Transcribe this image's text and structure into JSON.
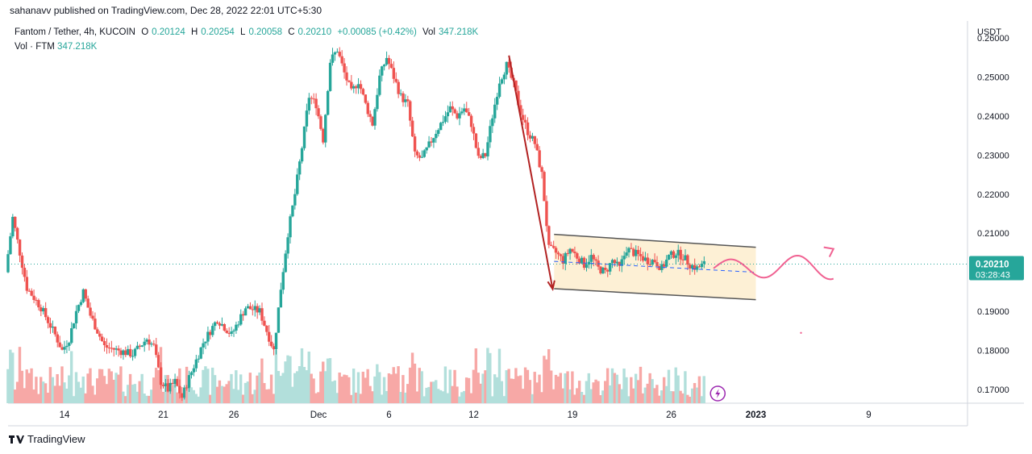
{
  "header": {
    "published": "sahanavv published on TradingView.com, Dec 28, 2022 22:01 UTC+5:30"
  },
  "legend": {
    "symbol": "Fantom / Tether, 4h, KUCOIN",
    "open_label": "O",
    "open": "0.20124",
    "high_label": "H",
    "high": "0.20254",
    "low_label": "L",
    "low": "0.20058",
    "close_label": "C",
    "close": "0.20210",
    "change": "+0.00085 (+0.42%)",
    "vol_label": "Vol",
    "vol": "347.218K",
    "vol_line_label": "Vol · FTM",
    "vol_line_value": "347.218K"
  },
  "axis": {
    "currency": "USDT",
    "countdown": "03:28:43"
  },
  "footer": {
    "brand": "TradingView"
  },
  "colors": {
    "up": "#26a69a",
    "down": "#ef5350",
    "vol_up": "#b2dfdb",
    "vol_down": "#f7a8a6",
    "channel_fill": "#fdf0d5",
    "channel_line": "#555555",
    "arrow": "#b22222",
    "projection": "#f06292",
    "mid_line": "#2962ff",
    "price_tag": "#26a69a"
  },
  "chart_data": {
    "type": "candlestick",
    "interval": "4h",
    "ylim": [
      0.1665,
      0.2635
    ],
    "y_ticks": [
      "0.26000",
      "0.25000",
      "0.24000",
      "0.23000",
      "0.22000",
      "0.21000",
      "0.19000",
      "0.18000",
      "0.17000"
    ],
    "y_tick_values": [
      0.26,
      0.25,
      0.24,
      0.23,
      0.22,
      0.21,
      0.19,
      0.18,
      0.17
    ],
    "x_labels": [
      "14",
      "21",
      "26",
      "Dec",
      "6",
      "12",
      "19",
      "26",
      "2023",
      "9"
    ],
    "x_label_days": [
      -17,
      -10,
      -5,
      1,
      6,
      12,
      19,
      26,
      32,
      40
    ],
    "x_range_days": [
      -21,
      47
    ],
    "last_price": 0.2021,
    "last_price_label": "0.20210",
    "anchors": [
      {
        "d": -21,
        "p": 0.2
      },
      {
        "d": -20.5,
        "p": 0.214
      },
      {
        "d": -20,
        "p": 0.205
      },
      {
        "d": -19.5,
        "p": 0.196
      },
      {
        "d": -18.5,
        "p": 0.191
      },
      {
        "d": -17.5,
        "p": 0.184
      },
      {
        "d": -17,
        "p": 0.18
      },
      {
        "d": -16.5,
        "p": 0.183
      },
      {
        "d": -16,
        "p": 0.19
      },
      {
        "d": -15.5,
        "p": 0.195
      },
      {
        "d": -15,
        "p": 0.189
      },
      {
        "d": -14,
        "p": 0.181
      },
      {
        "d": -12,
        "p": 0.179
      },
      {
        "d": -11,
        "p": 0.183
      },
      {
        "d": -10.5,
        "p": 0.181
      },
      {
        "d": -10,
        "p": 0.172
      },
      {
        "d": -9.5,
        "p": 0.17
      },
      {
        "d": -9,
        "p": 0.172
      },
      {
        "d": -8.5,
        "p": 0.168
      },
      {
        "d": -8,
        "p": 0.173
      },
      {
        "d": -7,
        "p": 0.182
      },
      {
        "d": -6,
        "p": 0.188
      },
      {
        "d": -5,
        "p": 0.184
      },
      {
        "d": -4,
        "p": 0.191
      },
      {
        "d": -3,
        "p": 0.19
      },
      {
        "d": -2,
        "p": 0.18
      },
      {
        "d": -1.5,
        "p": 0.196
      },
      {
        "d": -1,
        "p": 0.21
      },
      {
        "d": -0.5,
        "p": 0.22
      },
      {
        "d": 0,
        "p": 0.232
      },
      {
        "d": 0.5,
        "p": 0.245
      },
      {
        "d": 1,
        "p": 0.243
      },
      {
        "d": 1.5,
        "p": 0.234
      },
      {
        "d": 2,
        "p": 0.254
      },
      {
        "d": 2.5,
        "p": 0.257
      },
      {
        "d": 3,
        "p": 0.251
      },
      {
        "d": 3.5,
        "p": 0.246
      },
      {
        "d": 4,
        "p": 0.249
      },
      {
        "d": 4.5,
        "p": 0.243
      },
      {
        "d": 5,
        "p": 0.238
      },
      {
        "d": 5.5,
        "p": 0.25
      },
      {
        "d": 6,
        "p": 0.255
      },
      {
        "d": 6.5,
        "p": 0.25
      },
      {
        "d": 7,
        "p": 0.245
      },
      {
        "d": 7.5,
        "p": 0.243
      },
      {
        "d": 8,
        "p": 0.23
      },
      {
        "d": 8.5,
        "p": 0.229
      },
      {
        "d": 9.5,
        "p": 0.236
      },
      {
        "d": 10.5,
        "p": 0.242
      },
      {
        "d": 11,
        "p": 0.24
      },
      {
        "d": 11.5,
        "p": 0.242
      },
      {
        "d": 12,
        "p": 0.238
      },
      {
        "d": 12.5,
        "p": 0.229
      },
      {
        "d": 13,
        "p": 0.23
      },
      {
        "d": 13.5,
        "p": 0.24
      },
      {
        "d": 14,
        "p": 0.249
      },
      {
        "d": 14.5,
        "p": 0.253
      },
      {
        "d": 15,
        "p": 0.248
      },
      {
        "d": 15.5,
        "p": 0.241
      },
      {
        "d": 16,
        "p": 0.236
      },
      {
        "d": 16.5,
        "p": 0.233
      },
      {
        "d": 17,
        "p": 0.225
      },
      {
        "d": 17.5,
        "p": 0.206
      },
      {
        "d": 18,
        "p": 0.205
      },
      {
        "d": 18.5,
        "p": 0.203
      },
      {
        "d": 19,
        "p": 0.206
      },
      {
        "d": 19.5,
        "p": 0.204
      },
      {
        "d": 20,
        "p": 0.202
      },
      {
        "d": 20.5,
        "p": 0.204
      },
      {
        "d": 21,
        "p": 0.201
      },
      {
        "d": 21.5,
        "p": 0.2
      },
      {
        "d": 22,
        "p": 0.203
      },
      {
        "d": 22.5,
        "p": 0.201
      },
      {
        "d": 23,
        "p": 0.206
      },
      {
        "d": 23.5,
        "p": 0.205
      },
      {
        "d": 24,
        "p": 0.204
      },
      {
        "d": 24.5,
        "p": 0.203
      },
      {
        "d": 25,
        "p": 0.203
      },
      {
        "d": 25.5,
        "p": 0.201
      },
      {
        "d": 26,
        "p": 0.204
      },
      {
        "d": 26.5,
        "p": 0.205
      },
      {
        "d": 27,
        "p": 0.204
      },
      {
        "d": 27.5,
        "p": 0.202
      },
      {
        "d": 28,
        "p": 0.201
      },
      {
        "d": 28.5,
        "p": 0.2021
      }
    ],
    "channel": {
      "upper": [
        {
          "d": 17.7,
          "p": 0.2097
        },
        {
          "d": 32,
          "p": 0.2064
        }
      ],
      "lower": [
        {
          "d": 17.7,
          "p": 0.1958
        },
        {
          "d": 32,
          "p": 0.193
        }
      ]
    },
    "drop_arrow": [
      {
        "d": 14.5,
        "p": 0.2555
      },
      {
        "d": 17.6,
        "p": 0.1957
      }
    ],
    "mid_dashed": [
      {
        "d": 17.7,
        "p": 0.2028
      },
      {
        "d": 32,
        "p": 0.2
      }
    ],
    "volume_max": 1.0
  }
}
